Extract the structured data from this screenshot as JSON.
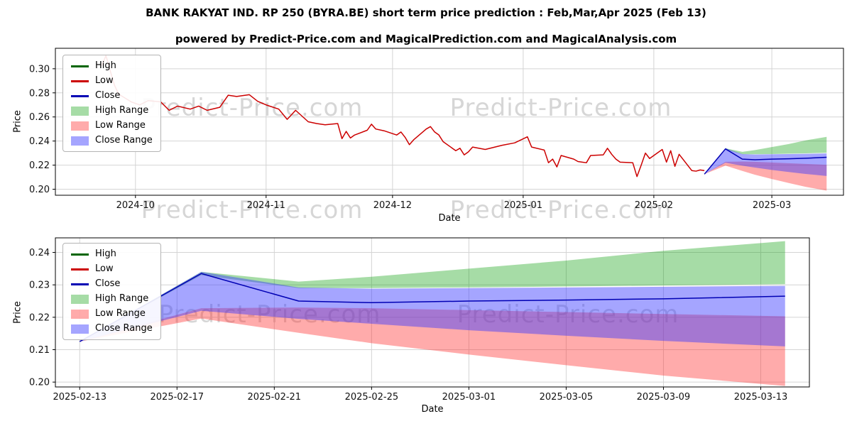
{
  "header": {
    "title": "BANK RAKYAT IND. RP 250 (BYRA.BE) short term price prediction : Feb,Mar,Apr 2025 (Feb 13)",
    "subtitle": "powered by Predict-Price.com and MagicalPrediction.com and MagicalAnalysis.com"
  },
  "watermark": {
    "text": "Predict-Price.com"
  },
  "legend": {
    "entries": [
      {
        "label": "High",
        "type": "line",
        "color": "#006400"
      },
      {
        "label": "Low",
        "type": "line",
        "color": "#cc0000"
      },
      {
        "label": "Close",
        "type": "line",
        "color": "#0000b4"
      },
      {
        "label": "High Range",
        "type": "patch",
        "color": "rgba(0,155,0,0.35)"
      },
      {
        "label": "Low Range",
        "type": "patch",
        "color": "rgba(255,45,45,0.40)"
      },
      {
        "label": "Close Range",
        "type": "patch",
        "color": "rgba(55,55,255,0.45)"
      }
    ]
  },
  "chart_data": [
    {
      "type": "line",
      "name": "history-and-forecast",
      "xlabel": "Date",
      "ylabel": "Price",
      "grid": true,
      "legend_position": "upper left",
      "xlim": [
        "2024-09-12",
        "2025-03-18"
      ],
      "ylim": [
        0.195,
        0.317
      ],
      "xticks": [
        {
          "label": "2024-10",
          "date": "2024-10-01"
        },
        {
          "label": "2024-11",
          "date": "2024-11-01"
        },
        {
          "label": "2024-12",
          "date": "2024-12-01"
        },
        {
          "label": "2025-01",
          "date": "2025-01-01"
        },
        {
          "label": "2025-02",
          "date": "2025-02-01"
        },
        {
          "label": "2025-03",
          "date": "2025-03-01"
        }
      ],
      "yticks": [
        {
          "label": "0.20",
          "value": 0.2
        },
        {
          "label": "0.22",
          "value": 0.22
        },
        {
          "label": "0.24",
          "value": 0.24
        },
        {
          "label": "0.26",
          "value": 0.26
        },
        {
          "label": "0.28",
          "value": 0.28
        },
        {
          "label": "0.30",
          "value": 0.3
        }
      ],
      "bands": [
        {
          "name": "high-range",
          "color": "rgba(0,155,0,0.35)",
          "x": [
            "2025-02-13",
            "2025-02-18",
            "2025-02-22",
            "2025-02-25",
            "2025-03-01",
            "2025-03-05",
            "2025-03-09",
            "2025-03-14"
          ],
          "upper": [
            0.2125,
            0.234,
            0.231,
            0.2325,
            0.235,
            0.2375,
            0.2405,
            0.2435
          ],
          "lower": [
            0.2125,
            0.233,
            0.229,
            0.229,
            0.2292,
            0.2295,
            0.2298,
            0.2302
          ]
        },
        {
          "name": "low-range",
          "color": "rgba(255,45,45,0.40)",
          "x": [
            "2025-02-13",
            "2025-02-18",
            "2025-02-22",
            "2025-02-25",
            "2025-03-01",
            "2025-03-05",
            "2025-03-09",
            "2025-03-14"
          ],
          "upper": [
            0.2125,
            0.2228,
            0.223,
            0.2228,
            0.2222,
            0.2216,
            0.221,
            0.2203
          ],
          "lower": [
            0.2125,
            0.2196,
            0.2152,
            0.212,
            0.2085,
            0.2052,
            0.202,
            0.1988
          ]
        },
        {
          "name": "close-range",
          "color": "rgba(55,55,255,0.45)",
          "x": [
            "2025-02-13",
            "2025-02-18",
            "2025-02-22",
            "2025-02-25",
            "2025-03-01",
            "2025-03-05",
            "2025-03-09",
            "2025-03-14"
          ],
          "upper": [
            0.2125,
            0.234,
            0.2292,
            0.2288,
            0.229,
            0.2292,
            0.2294,
            0.2297
          ],
          "lower": [
            0.2125,
            0.222,
            0.2195,
            0.218,
            0.216,
            0.2143,
            0.2127,
            0.211
          ]
        }
      ],
      "lines": [
        {
          "name": "low",
          "color": "#cc0000",
          "x": [
            "2024-09-23",
            "2024-09-24",
            "2024-09-25",
            "2024-09-26",
            "2024-09-27",
            "2024-09-30",
            "2024-10-02",
            "2024-10-04",
            "2024-10-07",
            "2024-10-09",
            "2024-10-11",
            "2024-10-14",
            "2024-10-16",
            "2024-10-18",
            "2024-10-21",
            "2024-10-23",
            "2024-10-25",
            "2024-10-28",
            "2024-10-30",
            "2024-11-01",
            "2024-11-04",
            "2024-11-06",
            "2024-11-08",
            "2024-11-11",
            "2024-11-13",
            "2024-11-15",
            "2024-11-18",
            "2024-11-19",
            "2024-11-20",
            "2024-11-21",
            "2024-11-22",
            "2024-11-25",
            "2024-11-26",
            "2024-11-27",
            "2024-11-29",
            "2024-12-02",
            "2024-12-03",
            "2024-12-04",
            "2024-12-05",
            "2024-12-06",
            "2024-12-09",
            "2024-12-10",
            "2024-12-11",
            "2024-12-12",
            "2024-12-13",
            "2024-12-16",
            "2024-12-17",
            "2024-12-18",
            "2024-12-19",
            "2024-12-20",
            "2024-12-23",
            "2024-12-27",
            "2024-12-30",
            "2025-01-02",
            "2025-01-03",
            "2025-01-06",
            "2025-01-07",
            "2025-01-08",
            "2025-01-09",
            "2025-01-10",
            "2025-01-13",
            "2025-01-14",
            "2025-01-15",
            "2025-01-16",
            "2025-01-17",
            "2025-01-20",
            "2025-01-21",
            "2025-01-22",
            "2025-01-23",
            "2025-01-24",
            "2025-01-27",
            "2025-01-28",
            "2025-01-29",
            "2025-01-30",
            "2025-01-31",
            "2025-02-03",
            "2025-02-04",
            "2025-02-05",
            "2025-02-06",
            "2025-02-07",
            "2025-02-10",
            "2025-02-11",
            "2025-02-12",
            "2025-02-13"
          ],
          "y": [
            0.3025,
            0.311,
            0.2985,
            0.2865,
            0.279,
            0.2725,
            0.27,
            0.2735,
            0.2725,
            0.2655,
            0.269,
            0.2665,
            0.269,
            0.2655,
            0.268,
            0.278,
            0.277,
            0.2785,
            0.273,
            0.27,
            0.2665,
            0.258,
            0.2655,
            0.256,
            0.2545,
            0.2535,
            0.2545,
            0.242,
            0.248,
            0.2425,
            0.245,
            0.249,
            0.254,
            0.25,
            0.2485,
            0.245,
            0.2475,
            0.243,
            0.237,
            0.241,
            0.25,
            0.252,
            0.2475,
            0.245,
            0.2395,
            0.232,
            0.234,
            0.2285,
            0.231,
            0.235,
            0.233,
            0.2365,
            0.2385,
            0.2435,
            0.235,
            0.2325,
            0.222,
            0.225,
            0.2185,
            0.228,
            0.225,
            0.223,
            0.2225,
            0.222,
            0.228,
            0.2285,
            0.234,
            0.229,
            0.225,
            0.2225,
            0.222,
            0.2105,
            0.22,
            0.23,
            0.2255,
            0.233,
            0.2225,
            0.232,
            0.219,
            0.229,
            0.2155,
            0.215,
            0.216,
            0.2155
          ]
        },
        {
          "name": "close",
          "color": "#0000b4",
          "x": [
            "2025-02-13",
            "2025-02-18",
            "2025-02-22",
            "2025-02-25",
            "2025-03-01",
            "2025-03-05",
            "2025-03-09",
            "2025-03-14"
          ],
          "y": [
            0.2125,
            0.2335,
            0.225,
            0.2245,
            0.225,
            0.2253,
            0.2257,
            0.2265
          ]
        }
      ]
    },
    {
      "type": "line",
      "name": "forecast-detail",
      "xlabel": "Date",
      "ylabel": "Price",
      "grid": true,
      "legend_position": "upper left",
      "xlim": [
        "2025-02-12",
        "2025-03-15"
      ],
      "ylim": [
        0.1985,
        0.2445
      ],
      "xticks": [
        {
          "label": "2025-02-13",
          "date": "2025-02-13"
        },
        {
          "label": "2025-02-17",
          "date": "2025-02-17"
        },
        {
          "label": "2025-02-21",
          "date": "2025-02-21"
        },
        {
          "label": "2025-02-25",
          "date": "2025-02-25"
        },
        {
          "label": "2025-03-01",
          "date": "2025-03-01"
        },
        {
          "label": "2025-03-05",
          "date": "2025-03-05"
        },
        {
          "label": "2025-03-09",
          "date": "2025-03-09"
        },
        {
          "label": "2025-03-13",
          "date": "2025-03-13"
        }
      ],
      "yticks": [
        {
          "label": "0.20",
          "value": 0.2
        },
        {
          "label": "0.21",
          "value": 0.21
        },
        {
          "label": "0.22",
          "value": 0.22
        },
        {
          "label": "0.23",
          "value": 0.23
        },
        {
          "label": "0.24",
          "value": 0.24
        }
      ],
      "bands": [
        {
          "name": "high-range",
          "color": "rgba(0,155,0,0.35)",
          "x": [
            "2025-02-13",
            "2025-02-18",
            "2025-02-22",
            "2025-02-25",
            "2025-03-01",
            "2025-03-05",
            "2025-03-09",
            "2025-03-14"
          ],
          "upper": [
            0.2125,
            0.234,
            0.231,
            0.2325,
            0.235,
            0.2375,
            0.2405,
            0.2435
          ],
          "lower": [
            0.2125,
            0.233,
            0.229,
            0.229,
            0.2292,
            0.2295,
            0.2298,
            0.2302
          ]
        },
        {
          "name": "low-range",
          "color": "rgba(255,45,45,0.40)",
          "x": [
            "2025-02-13",
            "2025-02-18",
            "2025-02-22",
            "2025-02-25",
            "2025-03-01",
            "2025-03-05",
            "2025-03-09",
            "2025-03-14"
          ],
          "upper": [
            0.2125,
            0.2228,
            0.223,
            0.2228,
            0.2222,
            0.2216,
            0.221,
            0.2203
          ],
          "lower": [
            0.2125,
            0.2196,
            0.2152,
            0.212,
            0.2085,
            0.2052,
            0.202,
            0.1988
          ]
        },
        {
          "name": "close-range",
          "color": "rgba(55,55,255,0.45)",
          "x": [
            "2025-02-13",
            "2025-02-18",
            "2025-02-22",
            "2025-02-25",
            "2025-03-01",
            "2025-03-05",
            "2025-03-09",
            "2025-03-14"
          ],
          "upper": [
            0.2125,
            0.234,
            0.2292,
            0.2288,
            0.229,
            0.2292,
            0.2294,
            0.2297
          ],
          "lower": [
            0.2125,
            0.222,
            0.2195,
            0.218,
            0.216,
            0.2143,
            0.2127,
            0.211
          ]
        }
      ],
      "lines": [
        {
          "name": "close",
          "color": "#0000b4",
          "x": [
            "2025-02-13",
            "2025-02-18",
            "2025-02-22",
            "2025-02-25",
            "2025-03-01",
            "2025-03-05",
            "2025-03-09",
            "2025-03-14"
          ],
          "y": [
            0.2125,
            0.2335,
            0.225,
            0.2245,
            0.225,
            0.2253,
            0.2257,
            0.2265
          ]
        }
      ]
    }
  ]
}
